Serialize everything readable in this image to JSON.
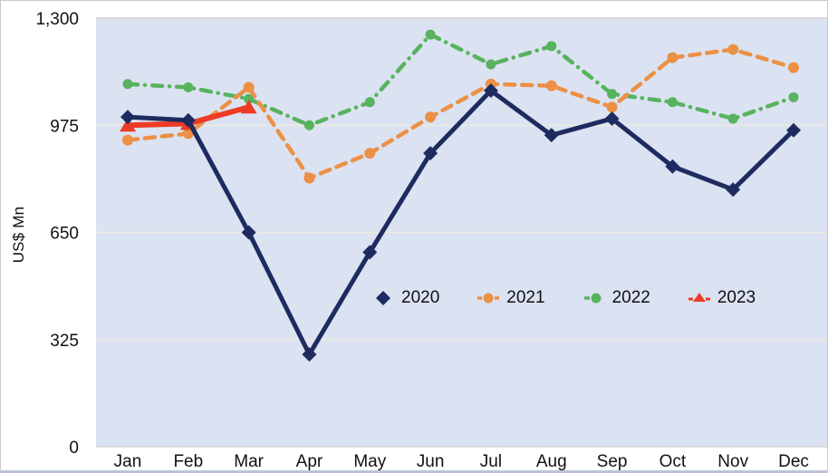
{
  "page": {
    "background": "#ffffff",
    "border_color": "#c9c9c9"
  },
  "chart_data": {
    "type": "line",
    "title": "",
    "xlabel": "",
    "ylabel": "US$ Mn",
    "categories": [
      "Jan",
      "Feb",
      "Mar",
      "Apr",
      "May",
      "Jun",
      "Jul",
      "Aug",
      "Sep",
      "Oct",
      "Nov",
      "Dec"
    ],
    "ylim": [
      0,
      1300
    ],
    "y_ticks": [
      0,
      325,
      650,
      975,
      1300
    ],
    "y_tick_labels": [
      "0",
      "325",
      "650",
      "975",
      "1,300"
    ],
    "grid": "horizontal",
    "plot_bg": "#dbe2f1",
    "grid_color": "#edeae0",
    "frame_color": "#d8d8d8",
    "text_color": "#111111",
    "legend_position": "center-inside",
    "series": [
      {
        "name": "2022",
        "color": "#57b35e",
        "style": "dashdot",
        "marker": "circle",
        "values": [
          1100,
          1090,
          1055,
          975,
          1045,
          1250,
          1160,
          1215,
          1070,
          1045,
          995,
          1060
        ]
      },
      {
        "name": "2021",
        "color": "#ec9046",
        "style": "dashed",
        "marker": "circle",
        "values": [
          930,
          950,
          1090,
          815,
          890,
          1000,
          1100,
          1095,
          1030,
          1180,
          1205,
          1150
        ]
      },
      {
        "name": "2023",
        "color": "#ee3b25",
        "style": "solid",
        "marker": "triangle",
        "values": [
          975,
          980,
          1030,
          null,
          null,
          null,
          null,
          null,
          null,
          null,
          null,
          null
        ]
      },
      {
        "name": "2020",
        "color": "#1e2b60",
        "style": "solid",
        "marker": "diamond",
        "values": [
          1000,
          990,
          650,
          280,
          590,
          890,
          1080,
          945,
          995,
          850,
          780,
          960
        ]
      }
    ],
    "legend_order": [
      "2020",
      "2021",
      "2022",
      "2023"
    ]
  }
}
